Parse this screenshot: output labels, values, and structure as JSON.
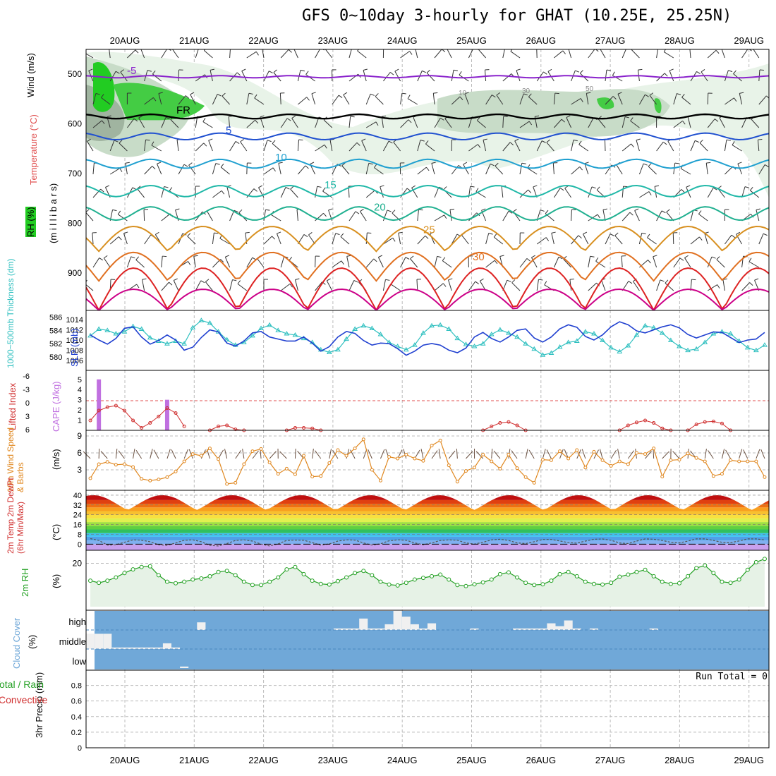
{
  "title": "GFS 0~10day 3-hourly for GHAT (10.25E, 25.25N)",
  "dates": [
    "20AUG",
    "21AUG",
    "22AUG",
    "23AUG",
    "24AUG",
    "25AUG",
    "26AUG",
    "27AUG",
    "28AUG",
    "29AUG"
  ],
  "labels": {
    "wind": "Wind (m/s)",
    "temperature": "Temperature (°C)",
    "rh": "RH (%)",
    "millibars": "(m i l l i b a r s)",
    "thickness": "1000~500mb Thickness (dm)",
    "slp": "SLP (mb)",
    "lifted": "Lifted Index",
    "cape": "CAPE (J/kg)",
    "wind10": "10m Wind Speed & Barbs",
    "ms": "(m/s)",
    "temp2m": "2m Temp 2m DewPt (6hr Min/Max)",
    "degc": "(°C)",
    "rh2m": "2m RH",
    "pct": "(%)",
    "cloud": "Cloud Cover",
    "precip": "3hr Precip (mm)",
    "total_rain": "Total / Rain",
    "convective": "Convective",
    "run_total": "Run Total = 0"
  },
  "colors": {
    "temp_label": "#e05050",
    "wind_label": "#000000",
    "rh_green": "#22cc22",
    "thick": "#30c0c0",
    "slp": "#2040d0",
    "lifted": "#d03030",
    "cape": "#c070e0",
    "wind10": "#e08820",
    "rh2m": "#22a022",
    "cloud": "#70a8d8"
  },
  "chart_data": [
    {
      "type": "contour",
      "panel": "upper-air",
      "ylabel": "millibars",
      "yticks": [
        500,
        600,
        700,
        800,
        900
      ],
      "ylim": [
        450,
        975
      ],
      "isotherms": [
        {
          "label": "-5",
          "level": 505
        },
        {
          "label": "FR",
          "level": 585
        },
        {
          "label": "5",
          "level": 625
        },
        {
          "label": "10",
          "level": 680
        },
        {
          "label": "15",
          "level": 735
        },
        {
          "label": "20",
          "level": 780
        },
        {
          "label": "25",
          "level": 825
        },
        {
          "label": "30",
          "level": 880
        }
      ],
      "rh_labels": [
        "10",
        "30",
        "50"
      ]
    },
    {
      "type": "line",
      "panel": "thickness-slp",
      "thickness_ticks": [
        580,
        582,
        584,
        586
      ],
      "slp_ticks": [
        1006,
        1008,
        1010,
        1012,
        1014
      ],
      "series": [
        {
          "name": "1000~500mb Thickness",
          "axis": "thickness",
          "values": [
            583.2,
            584.2,
            584.0,
            583.5,
            583.8,
            584.6,
            584.2,
            582.9,
            582.4,
            582.0,
            582.4,
            582.0,
            584.4,
            585.5,
            585.1,
            583.8,
            582.6,
            581.8,
            582.2,
            583.2,
            584.3,
            584.8,
            584.0,
            583.5,
            583.3,
            582.8,
            582.2,
            581.1,
            580.7,
            581.1,
            582.7,
            584.2,
            584.7,
            584.3,
            583.4,
            582.2,
            581.6,
            581.1,
            581.8,
            583.6,
            584.7,
            584.8,
            584.2,
            582.8,
            581.9,
            581.6,
            582.0,
            583.4,
            584.1,
            583.6,
            583.0,
            582.0,
            581.2,
            580.3,
            580.6,
            581.5,
            582.2,
            582.4,
            583.8,
            583.5,
            582.5,
            581.4,
            580.8,
            581.7,
            583.3,
            584.7,
            584.4,
            583.6,
            582.5,
            581.6,
            581.0,
            581.2,
            582.2,
            583.5,
            583.8,
            583.5,
            582.4,
            581.4,
            581.0,
            581.8
          ]
        },
        {
          "name": "SLP",
          "axis": "slp",
          "values": [
            1011.0,
            1010.0,
            1009.2,
            1010.3,
            1012.3,
            1012.6,
            1010.6,
            1009.2,
            1009.9,
            1011.0,
            1010.0,
            1008.0,
            1008.6,
            1010.5,
            1012.0,
            1011.6,
            1009.4,
            1008.8,
            1009.8,
            1011.4,
            1011.7,
            1010.6,
            1010.2,
            1009.8,
            1009.8,
            1010.6,
            1009.4,
            1007.8,
            1008.7,
            1010.6,
            1011.7,
            1011.3,
            1009.9,
            1009.0,
            1009.4,
            1009.3,
            1008.3,
            1007.0,
            1007.8,
            1009.0,
            1009.3,
            1009.0,
            1008.0,
            1007.5,
            1008.4,
            1010.6,
            1011.5,
            1010.3,
            1009.6,
            1010.6,
            1011.9,
            1012.2,
            1010.4,
            1009.6,
            1010.6,
            1012.2,
            1013.0,
            1012.5,
            1010.7,
            1010.0,
            1011.0,
            1012.6,
            1013.6,
            1013.0,
            1011.8,
            1011.4,
            1012.0,
            1012.6,
            1013.0,
            1012.4,
            1011.1,
            1010.4,
            1011.0,
            1011.6,
            1011.5,
            1010.5,
            1009.5,
            1010.0,
            1010.2,
            1011.5
          ]
        }
      ]
    },
    {
      "type": "bar+line",
      "panel": "cape-lifted",
      "cape_ticks": [
        1,
        2,
        3,
        4,
        5
      ],
      "lifted_ticks": [
        "-6",
        "-3",
        "0",
        "3",
        "6"
      ],
      "cape_bars": [
        {
          "index": 1,
          "value": 5
        },
        {
          "index": 9,
          "value": 3
        }
      ],
      "lifted_segments": [
        {
          "start": 0,
          "values": [
            4.0,
            2.0,
            1.3,
            1.0,
            2.0,
            4.0,
            5.5,
            4.5,
            3.2,
            1.5,
            2.5,
            5.2
          ]
        },
        {
          "start": 14,
          "values": [
            6,
            5.2,
            5.0,
            5.8,
            6
          ]
        },
        {
          "start": 23,
          "values": [
            6,
            5.5,
            5.5,
            5.6,
            6
          ]
        },
        {
          "start": 46,
          "values": [
            6,
            5.2,
            4.5,
            4.3,
            5.0,
            6
          ]
        },
        {
          "start": 62,
          "values": [
            6,
            5.0,
            4.4,
            4.0,
            4.5,
            5.6,
            6
          ]
        },
        {
          "start": 70,
          "values": [
            6,
            4.8,
            4.3,
            4.2,
            4.6,
            6
          ]
        }
      ]
    },
    {
      "type": "line",
      "panel": "wind10",
      "ylim": [
        0,
        10
      ],
      "yticks": [
        3,
        6,
        9
      ],
      "values": [
        1.5,
        4.0,
        4.4,
        3.9,
        4.0,
        3.5,
        1.4,
        1.1,
        1.3,
        1.7,
        2.7,
        4.5,
        5.8,
        5.5,
        6.8,
        4.9,
        0.5,
        0.7,
        4.0,
        6.3,
        6.7,
        4.3,
        2.3,
        3.2,
        2.2,
        5.5,
        1.8,
        1.9,
        4.2,
        6.5,
        5.5,
        6.8,
        8.4,
        3.0,
        1.1,
        5.3,
        5.0,
        5.7,
        5.0,
        4.6,
        7.3,
        8.2,
        3.8,
        0.9,
        2.8,
        3.4,
        5.7,
        4.5,
        3.2,
        5.7,
        3.3,
        1.7,
        0.7,
        4.8,
        4.7,
        6.3,
        5.0,
        6.5,
        3.4,
        6.2,
        4.7,
        3.7,
        4.5,
        4.0,
        6.0,
        5.8,
        6.8,
        1.8,
        4.7,
        4.8,
        5.9,
        5.1,
        4.5,
        1.9,
        2.3,
        4.7,
        4.5,
        4.5,
        4.5,
        1.7
      ]
    },
    {
      "type": "area",
      "panel": "temp2m",
      "ylim": [
        -5,
        44
      ],
      "yticks": [
        0,
        8,
        16,
        24,
        32,
        40
      ],
      "temp_max": 40,
      "temp_min": 28,
      "dewpoint": [
        4.5,
        3.0,
        -0.8,
        -0.5,
        1.5,
        3.5,
        3.2,
        2.0,
        -0.5,
        -1.0,
        1.0,
        3.2,
        3.5,
        2.0,
        -1.0,
        -1.5,
        0.5,
        3.0,
        3.5,
        2.5,
        0.0,
        -1.5,
        0.2,
        3.0,
        3.3,
        3.2,
        1.2,
        -0.8,
        0.2,
        2.5,
        3.5,
        3.3,
        1.0,
        -0.8,
        0.3,
        2.7,
        3.5,
        3.2,
        1.0,
        -0.5,
        1.0,
        3.0,
        3.5,
        3.2,
        1.0,
        0.0,
        1.5,
        3.5,
        4.0,
        3.0,
        1.0,
        0.5,
        2.0,
        3.8,
        3.8,
        2.6,
        1.2,
        0.8,
        2.5,
        4.0,
        4.2,
        3.2,
        1.0,
        0.5,
        2.5,
        4.3,
        4.0,
        3.0,
        1.5,
        1.0,
        2.5,
        4.3,
        4.3,
        3.0,
        1.5,
        1.2,
        2.6,
        4.3,
        4.3,
        3.5
      ]
    },
    {
      "type": "line",
      "panel": "rh2m",
      "ylim": [
        0,
        26
      ],
      "yticks": [
        20
      ],
      "values": [
        12.0,
        11.0,
        12.0,
        13.5,
        15.5,
        17.2,
        18.3,
        18.6,
        14.5,
        11.5,
        10.8,
        11.5,
        12.5,
        13.0,
        14.0,
        16.0,
        16.5,
        14.5,
        11.5,
        10.0,
        10.0,
        11.5,
        13.5,
        17.2,
        18.3,
        15.0,
        12.0,
        10.5,
        10.2,
        11.8,
        13.5,
        15.5,
        16.5,
        14.5,
        11.5,
        10.2,
        9.8,
        11.0,
        12.5,
        13.3,
        14.0,
        14.8,
        12.5,
        10.0,
        9.5,
        10.3,
        11.2,
        12.5,
        15.0,
        15.8,
        13.5,
        11.0,
        10.0,
        10.3,
        12.0,
        15.0,
        16.0,
        14.0,
        11.5,
        10.5,
        10.2,
        11.0,
        13.8,
        14.8,
        16.0,
        17.0,
        14.0,
        11.5,
        10.5,
        10.8,
        14.0,
        17.8,
        19.0,
        15.5,
        11.5,
        11.0,
        12.5,
        17.0,
        20.5,
        22.0
      ]
    },
    {
      "type": "bar",
      "panel": "cloud",
      "levels": [
        "high",
        "middle",
        "low"
      ],
      "values": [
        {
          "index": 0,
          "level": "middle",
          "value": 80
        },
        {
          "index": 1,
          "level": "middle",
          "value": 80
        },
        {
          "index": 2,
          "level": "middle",
          "value": 80
        },
        {
          "index": 3,
          "level": "middle",
          "value": 8
        },
        {
          "index": 4,
          "level": "middle",
          "value": 8
        },
        {
          "index": 5,
          "level": "middle",
          "value": 8
        },
        {
          "index": 6,
          "level": "middle",
          "value": 8
        },
        {
          "index": 7,
          "level": "middle",
          "value": 8
        },
        {
          "index": 8,
          "level": "middle",
          "value": 8
        },
        {
          "index": 9,
          "level": "middle",
          "value": 30
        },
        {
          "index": 10,
          "level": "middle",
          "value": 8
        },
        {
          "index": 11,
          "level": "low",
          "value": 8
        },
        {
          "index": 13,
          "level": "high",
          "value": 40
        },
        {
          "index": 29,
          "level": "high",
          "value": 8
        },
        {
          "index": 30,
          "level": "high",
          "value": 8
        },
        {
          "index": 31,
          "level": "high",
          "value": 8
        },
        {
          "index": 32,
          "level": "high",
          "value": 60
        },
        {
          "index": 33,
          "level": "high",
          "value": 8
        },
        {
          "index": 34,
          "level": "high",
          "value": 8
        },
        {
          "index": 35,
          "level": "high",
          "value": 30
        },
        {
          "index": 36,
          "level": "high",
          "value": 100
        },
        {
          "index": 37,
          "level": "high",
          "value": 70
        },
        {
          "index": 38,
          "level": "high",
          "value": 30
        },
        {
          "index": 39,
          "level": "high",
          "value": 8
        },
        {
          "index": 40,
          "level": "high",
          "value": 35
        },
        {
          "index": 45,
          "level": "high",
          "value": 8
        },
        {
          "index": 50,
          "level": "high",
          "value": 8
        },
        {
          "index": 51,
          "level": "high",
          "value": 8
        },
        {
          "index": 52,
          "level": "high",
          "value": 8
        },
        {
          "index": 53,
          "level": "high",
          "value": 8
        },
        {
          "index": 54,
          "level": "high",
          "value": 35
        },
        {
          "index": 55,
          "level": "high",
          "value": 20
        },
        {
          "index": 56,
          "level": "high",
          "value": 50
        },
        {
          "index": 57,
          "level": "high",
          "value": 8
        },
        {
          "index": 59,
          "level": "high",
          "value": 8
        },
        {
          "index": 66,
          "level": "high",
          "value": 8
        }
      ]
    },
    {
      "type": "bar",
      "panel": "precip",
      "ylim": [
        0,
        1
      ],
      "yticks": [
        0,
        0.2,
        0.4,
        0.6,
        0.8
      ],
      "values": []
    }
  ]
}
